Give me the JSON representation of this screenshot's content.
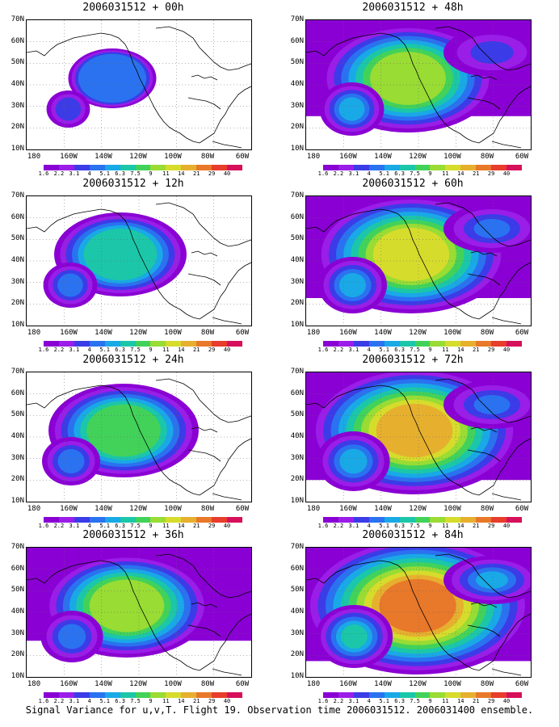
{
  "caption": "Signal Variance for u,v,T. Flight 19. Observation time 2006031512. 2006031400 ensemble.",
  "lat_labels": [
    "70N",
    "60N",
    "50N",
    "40N",
    "30N",
    "20N",
    "10N"
  ],
  "lon_labels": [
    "180",
    "160W",
    "140W",
    "120W",
    "100W",
    "80W",
    "60W"
  ],
  "colorbar": {
    "labels": [
      "1.6",
      "2.2",
      "3.1",
      "4",
      "5.1",
      "6.3",
      "7.5",
      "9",
      "11",
      "14",
      "21",
      "29",
      "40"
    ],
    "colors": [
      "#8a00d4",
      "#9a1de8",
      "#3b3be8",
      "#2a72f0",
      "#19a9e6",
      "#1bc7a8",
      "#42d25a",
      "#98dc34",
      "#d6dc2c",
      "#e6b02e",
      "#e8782a",
      "#e83c2c",
      "#d6105a"
    ]
  },
  "panels": [
    {
      "title": "2006031512 + 00h",
      "forecast_hour": 0,
      "intensity": 0.15
    },
    {
      "title": "2006031512 + 48h",
      "forecast_hour": 48,
      "intensity": 0.65
    },
    {
      "title": "2006031512 + 12h",
      "forecast_hour": 12,
      "intensity": 0.4
    },
    {
      "title": "2006031512 + 60h",
      "forecast_hour": 60,
      "intensity": 0.75
    },
    {
      "title": "2006031512 + 24h",
      "forecast_hour": 24,
      "intensity": 0.5
    },
    {
      "title": "2006031512 + 72h",
      "forecast_hour": 72,
      "intensity": 0.85
    },
    {
      "title": "2006031512 + 36h",
      "forecast_hour": 36,
      "intensity": 0.6
    },
    {
      "title": "2006031512 + 84h",
      "forecast_hour": 84,
      "intensity": 0.95
    }
  ]
}
